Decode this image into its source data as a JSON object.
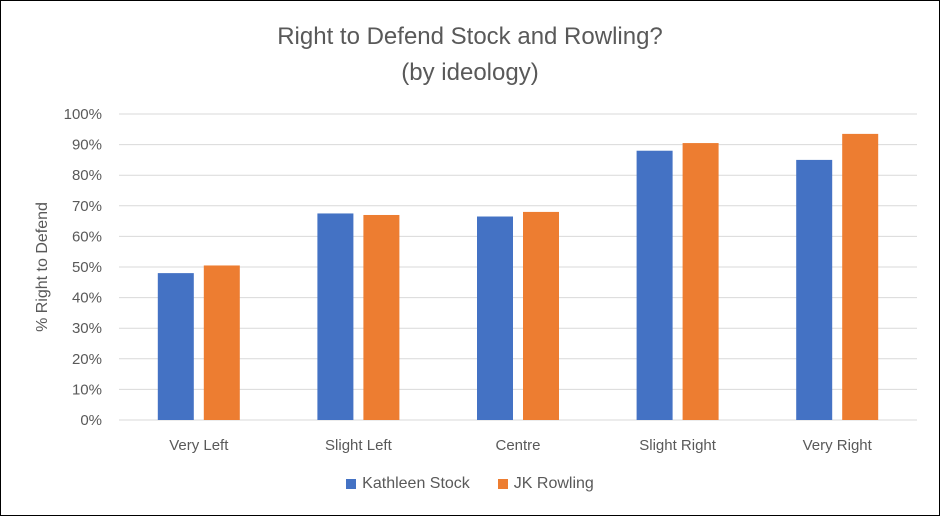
{
  "chart_data": {
    "type": "bar",
    "title_line1": "Right to Defend Stock and Rowling?",
    "title_line2": "(by ideology)",
    "ylabel": "% Right to Defend",
    "xlabel": "",
    "categories": [
      "Very Left",
      "Slight Left",
      "Centre",
      "Slight Right",
      "Very Right"
    ],
    "series": [
      {
        "name": "Kathleen Stock",
        "color": "#4472C4",
        "values": [
          48,
          67.5,
          66.5,
          88,
          85
        ]
      },
      {
        "name": "JK Rowling",
        "color": "#ED7D31",
        "values": [
          50.5,
          67,
          68,
          90.5,
          93.5
        ]
      }
    ],
    "ylim": [
      0,
      100
    ],
    "yticks": [
      "0%",
      "10%",
      "20%",
      "30%",
      "40%",
      "50%",
      "60%",
      "70%",
      "80%",
      "90%",
      "100%"
    ],
    "grid": true,
    "gridline_color": "#D9D9D9",
    "legend_position": "bottom"
  }
}
